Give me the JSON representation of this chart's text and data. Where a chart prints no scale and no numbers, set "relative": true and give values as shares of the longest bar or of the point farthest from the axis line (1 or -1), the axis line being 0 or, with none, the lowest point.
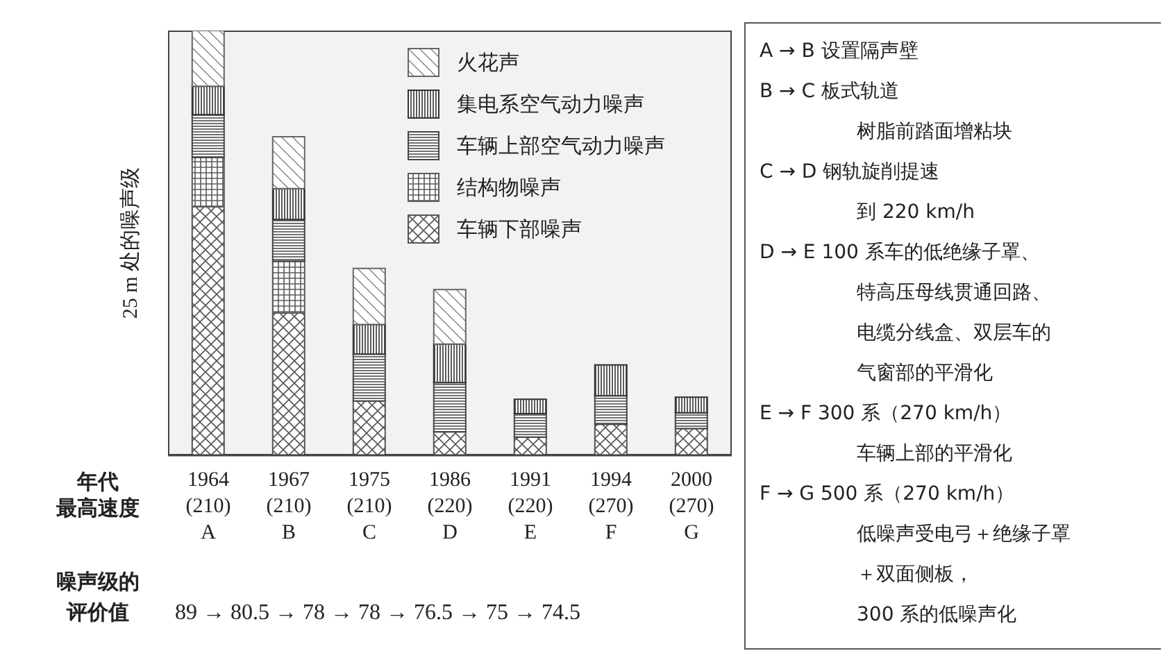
{
  "chart_data": {
    "type": "bar",
    "stacked": true,
    "relative": true,
    "ylabel": "25 m 处的噪声级",
    "legend": "top right",
    "categories": [
      "1964\n(210)\nA",
      "1967\n(210)\nB",
      "1975\n(210)\nC",
      "1986\n(220)\nD",
      "1991\n(220)\nE",
      "1994\n(270)\nF",
      "2000\n(270)\nG"
    ],
    "series": [
      {
        "name": "车辆下部噪声",
        "color": "#555555",
        "values": [
          0.585,
          0.335,
          0.128,
          0.055,
          0.043,
          0.073,
          0.063
        ]
      },
      {
        "name": "结构物噪声",
        "color": "#5a5a5a",
        "values": [
          0.116,
          0.122,
          null,
          null,
          null,
          null,
          null
        ]
      },
      {
        "name": "车辆上部空气动力噪声",
        "color": "#444444",
        "values": [
          0.101,
          0.098,
          0.11,
          0.116,
          0.055,
          0.067,
          0.037
        ]
      },
      {
        "name": "集电系空气动力噪声",
        "color": "#333333",
        "values": [
          0.067,
          0.073,
          0.07,
          0.091,
          0.034,
          0.073,
          0.037
        ]
      },
      {
        "name": "火花声",
        "color": "#666666",
        "values": [
          0.131,
          0.122,
          0.132,
          0.128,
          null,
          null,
          null
        ]
      }
    ],
    "annotations": [
      "年代",
      "最高速度",
      "噪声级的",
      "评价值",
      "89 → 80.5 → 78 → 78 → 76.5 → 75 → 74.5",
      "A → B  设置隔声壁",
      "B → C  板式轨道",
      "树脂前踏面增粘块",
      "C → D  钢轨旋削提速",
      "到 220 km/h",
      "D → E  100 系车的低绝缘子罩、",
      "特高压母线贯通回路、",
      "电缆分线盒、双层车的",
      "气窗部的平滑化",
      "E → F  300 系（270 km/h）",
      "车辆上部的平滑化",
      "F → G  500 系（270 km/h）",
      "低噪声受电弓＋绝缘子罩",
      "＋双面侧板，",
      "300 系的低噪声化"
    ]
  }
}
